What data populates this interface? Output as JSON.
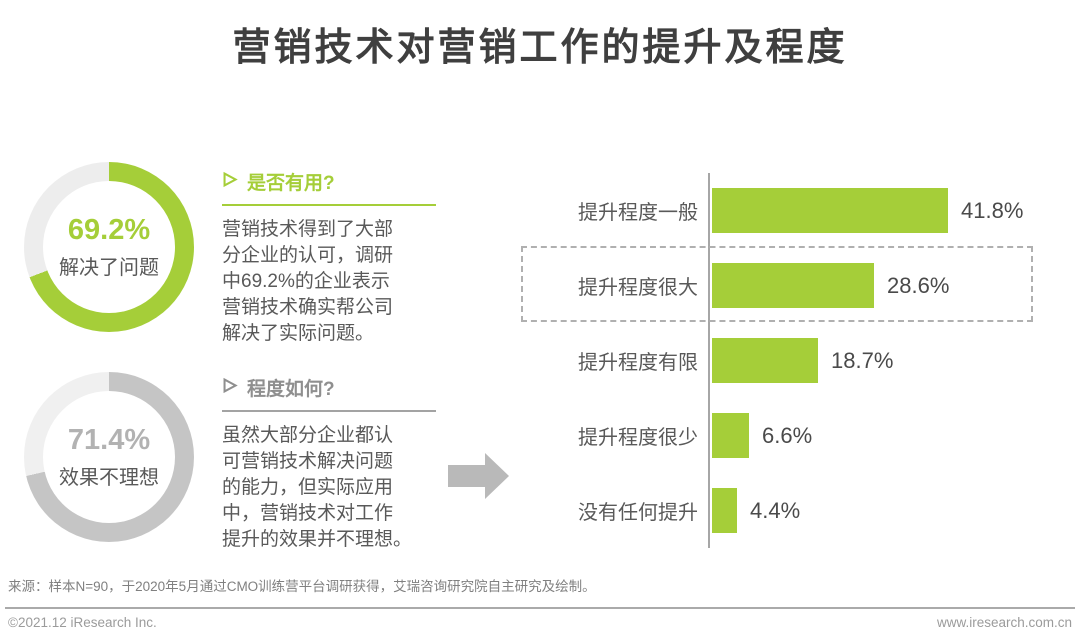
{
  "title": "营销技术对营销工作的提升及程度",
  "colors": {
    "green": "#a5ce39",
    "donut_gray": "#c5c5c5",
    "donut_track_light": "#ededed",
    "text_dark": "#3f3f3f",
    "text_body": "#595959",
    "footer_gray": "#9b9b9b"
  },
  "sections": [
    {
      "bullet_icon": "arrowhead-right-icon",
      "title": "是否有用?",
      "body": "营销技术得到了大部\n分企业的认可，调研\n中69.2%的企业表示\n营销技术确实帮公司\n解决了实际问题。"
    },
    {
      "bullet_icon": "arrowhead-right-icon",
      "title": "程度如何?",
      "body": "虽然大部分企业都认\n可营销技术解决问题\n的能力，但实际应用\n中，营销技术对工作\n提升的效果并不理想。"
    }
  ],
  "arrow_icon": "right-arrow-icon",
  "chart_data": [
    {
      "type": "donut",
      "value": 69.2,
      "value_label": "69.2%",
      "label": "解决了问题",
      "color": "#a5ce39",
      "track_color": "#ededed",
      "start_angle": "top",
      "direction": "clockwise"
    },
    {
      "type": "donut",
      "value": 71.4,
      "value_label": "71.4%",
      "label": "效果不理想",
      "color": "#c5c5c5",
      "track_color": "#f0f0f0",
      "start_angle": "top",
      "direction": "clockwise"
    },
    {
      "type": "bar",
      "orientation": "horizontal",
      "categories": [
        "提升程度一般",
        "提升程度很大",
        "提升程度有限",
        "提升程度很少",
        "没有任何提升"
      ],
      "values": [
        41.8,
        28.6,
        18.7,
        6.6,
        4.4
      ],
      "value_labels": [
        "41.8%",
        "28.6%",
        "18.7%",
        "6.6%",
        "4.4%"
      ],
      "bar_color": "#a5ce39",
      "highlighted_category": "提升程度很大",
      "xlim": [
        0,
        45
      ],
      "grid": false,
      "legend": "none"
    }
  ],
  "footer": {
    "source": "来源：样本N=90，于2020年5月通过CMO训练营平台调研获得，艾瑞咨询研究院自主研究及绘制。",
    "copyright": "©2021.12 iResearch Inc.",
    "website": "www.iresearch.com.cn"
  }
}
